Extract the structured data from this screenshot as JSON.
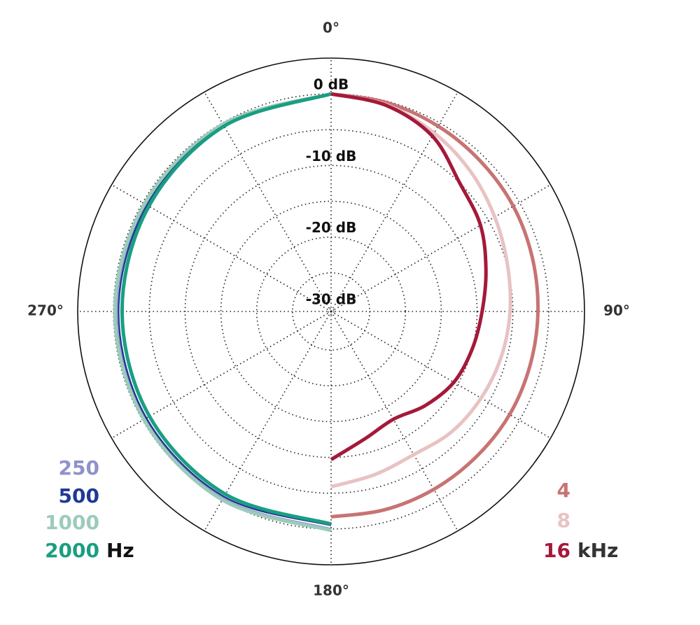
{
  "chart_data": {
    "type": "polar",
    "rlim": [
      -30,
      5
    ],
    "rticks": [
      {
        "value": 0,
        "label": "0 dB"
      },
      {
        "value": -5,
        "label": null
      },
      {
        "value": -10,
        "label": "-10 dB"
      },
      {
        "value": -15,
        "label": null
      },
      {
        "value": -20,
        "label": "-20 dB"
      },
      {
        "value": -25,
        "label": null
      },
      {
        "value": -30,
        "label": "-30 dB"
      }
    ],
    "thetaticks": [
      {
        "value": 0,
        "label": "0°"
      },
      {
        "value": 30,
        "label": null
      },
      {
        "value": 60,
        "label": null
      },
      {
        "value": 90,
        "label": "90°"
      },
      {
        "value": 120,
        "label": null
      },
      {
        "value": 150,
        "label": null
      },
      {
        "value": 180,
        "label": "180°"
      },
      {
        "value": 210,
        "label": null
      },
      {
        "value": 240,
        "label": null
      },
      {
        "value": 270,
        "label": "270°"
      },
      {
        "value": 300,
        "label": null
      },
      {
        "value": 330,
        "label": null
      }
    ],
    "legend_units": [
      "Hz",
      "kHz"
    ],
    "series": [
      {
        "name": "250",
        "color": "#8f92c9",
        "legend": 0,
        "theta": [
          180,
          210,
          240,
          270,
          300,
          330,
          360
        ],
        "values": [
          0.1,
          -0.1,
          -0.3,
          -0.3,
          -0.4,
          -0.2,
          0
        ]
      },
      {
        "name": "1000",
        "color": "#9ccbbb",
        "legend": 0,
        "theta": [
          180,
          210,
          240,
          270,
          300,
          330,
          360
        ],
        "values": [
          0.2,
          0,
          -0.2,
          -0.2,
          -0.3,
          -0.2,
          0
        ]
      },
      {
        "name": "500",
        "color": "#1f3a93",
        "legend": 0,
        "theta": [
          180,
          210,
          240,
          270,
          300,
          330,
          360
        ],
        "values": [
          -0.5,
          -0.5,
          -0.6,
          -0.7,
          -0.7,
          -0.4,
          0
        ]
      },
      {
        "name": "2000",
        "color": "#1a9e82",
        "legend": 0,
        "theta": [
          180,
          210,
          240,
          270,
          300,
          330,
          360
        ],
        "values": [
          -0.7,
          -0.9,
          -1.1,
          -1.2,
          -1.0,
          -0.5,
          0
        ]
      },
      {
        "name": "4",
        "color": "#c87373",
        "legend": 1,
        "theta": [
          0,
          15,
          30,
          45,
          60,
          75,
          90,
          105,
          120,
          135,
          150,
          165,
          180
        ],
        "values": [
          0,
          -0.2,
          -0.5,
          -0.8,
          -1.0,
          -1.3,
          -1.5,
          -1.6,
          -1.6,
          -1.7,
          -1.7,
          -1.7,
          -1.7
        ]
      },
      {
        "name": "8",
        "color": "#e8c3c3",
        "legend": 1,
        "theta": [
          0,
          15,
          30,
          45,
          60,
          75,
          90,
          105,
          120,
          135,
          150,
          165,
          180
        ],
        "values": [
          0,
          -0.5,
          -1.6,
          -2.8,
          -4,
          -4.9,
          -5.4,
          -5.8,
          -6.2,
          -6.6,
          -7.3,
          -6.8,
          -5.9
        ]
      },
      {
        "name": "16",
        "color": "#a4193a",
        "legend": 1,
        "theta": [
          0,
          15,
          30,
          45,
          60,
          75,
          90,
          105,
          120,
          135,
          150,
          165,
          180
        ],
        "values": [
          0,
          -0.6,
          -2.1,
          -5,
          -6.3,
          -8,
          -9.3,
          -10,
          -10.6,
          -11.8,
          -13,
          -12,
          -9.7
        ]
      }
    ]
  }
}
